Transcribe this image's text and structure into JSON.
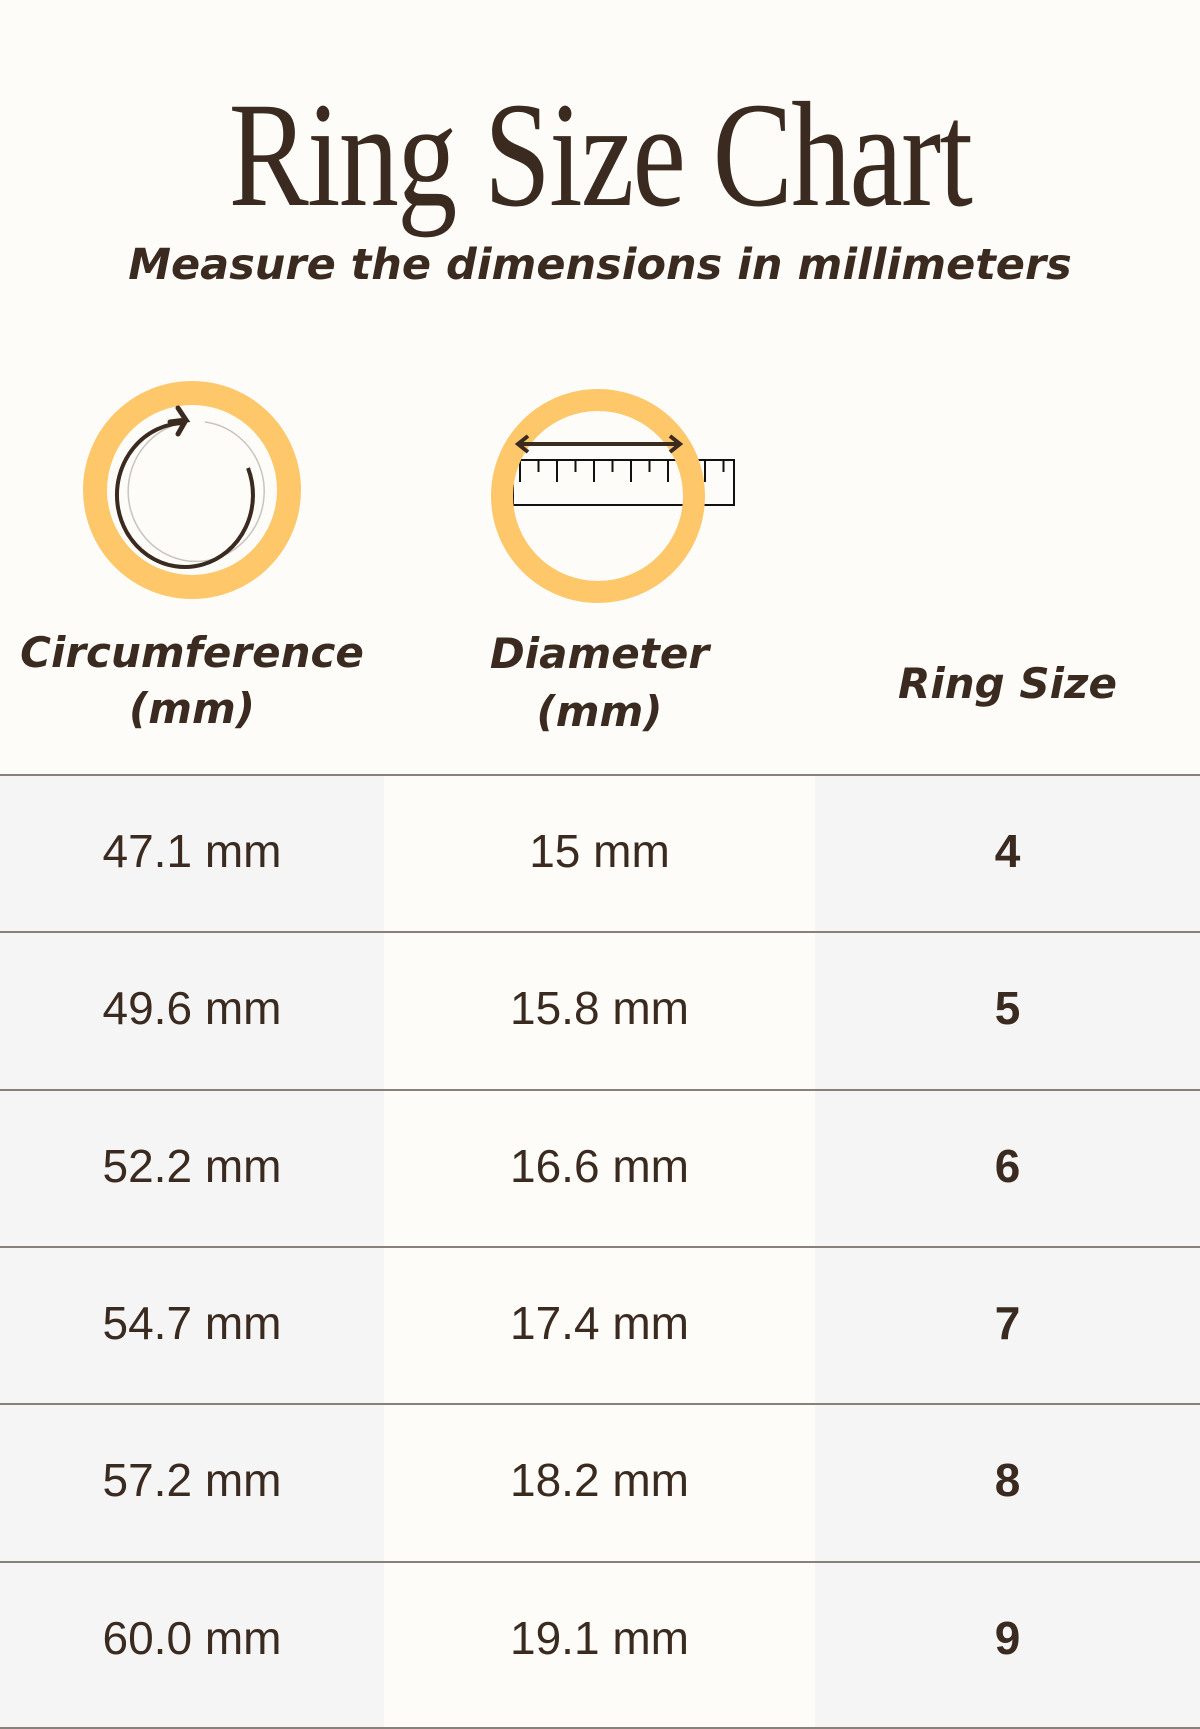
{
  "title": "Ring Size Chart",
  "subtitle": "Measure the dimensions in millimeters",
  "colors": {
    "background": "#fdfcf8",
    "text": "#3a2a1f",
    "ring": "#fdc76a",
    "shaded_column": "#f5f5f5"
  },
  "icons": [
    "circumference-ring-icon",
    "diameter-ring-ruler-icon"
  ],
  "headers": {
    "circumference_line1": "Circumference",
    "circumference_line2": "(mm)",
    "diameter_line1": "Diameter",
    "diameter_line2": "(mm)",
    "ring_size": "Ring Size"
  },
  "rows": [
    {
      "circumference": "47.1 mm",
      "diameter": "15 mm",
      "size": "4"
    },
    {
      "circumference": "49.6 mm",
      "diameter": "15.8 mm",
      "size": "5"
    },
    {
      "circumference": "52.2 mm",
      "diameter": "16.6 mm",
      "size": "6"
    },
    {
      "circumference": "54.7 mm",
      "diameter": "17.4 mm",
      "size": "7"
    },
    {
      "circumference": "57.2 mm",
      "diameter": "18.2 mm",
      "size": "8"
    },
    {
      "circumference": "60.0 mm",
      "diameter": "19.1 mm",
      "size": "9"
    }
  ]
}
